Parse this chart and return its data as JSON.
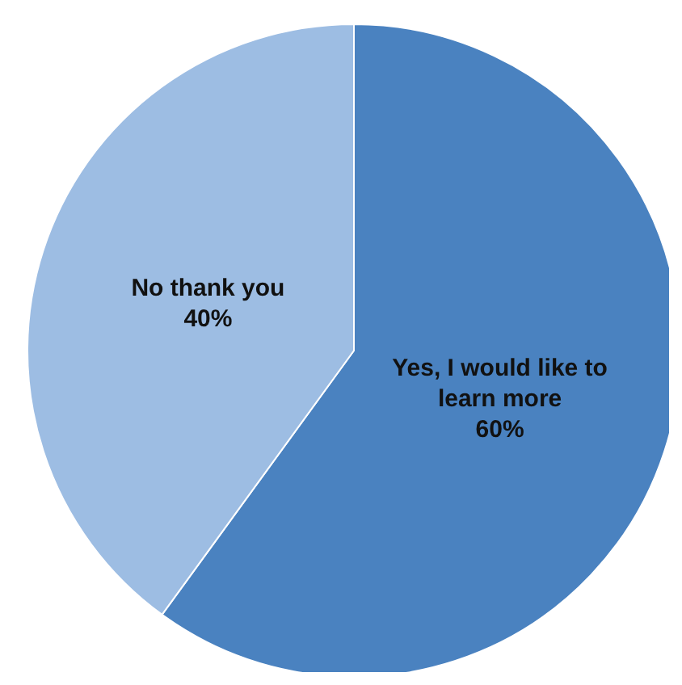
{
  "chart_data": {
    "type": "pie",
    "categories": [
      "Yes, I would like to learn more",
      "No thank you"
    ],
    "values": [
      60,
      40
    ],
    "value_labels": [
      "60%",
      "40%"
    ],
    "colors": [
      "#4a82c0",
      "#9dbde3"
    ],
    "legend": false
  }
}
